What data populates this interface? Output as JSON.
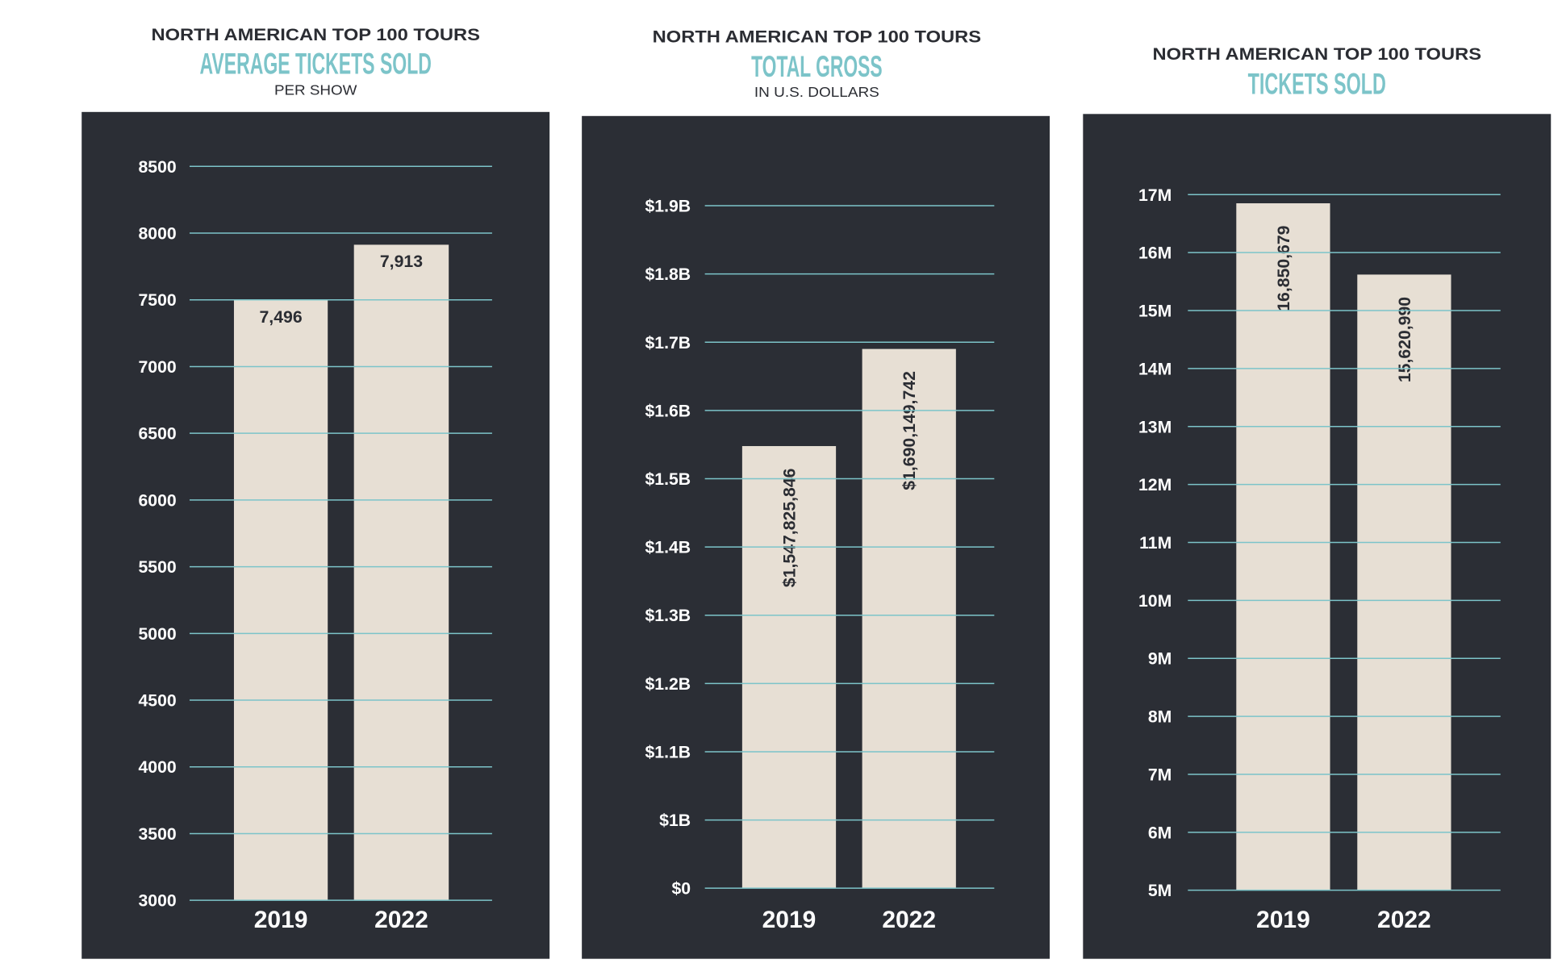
{
  "colors": {
    "panel": "#2b2e35",
    "bar": "#e7dfd4",
    "grid": "#7cc4c9",
    "title_accent": "#7cc4c9",
    "text_dark": "#2b2d33"
  },
  "chart_data": [
    {
      "type": "bar",
      "supertitle": "NORTH AMERICAN TOP 100 TOURS",
      "title": "AVERAGE TICKETS SOLD",
      "subtitle": "PER SHOW",
      "categories": [
        "2019",
        "2022"
      ],
      "values": [
        7496,
        7913
      ],
      "data_labels": [
        "7,496",
        "7,913"
      ],
      "yticks": [
        3000,
        3500,
        4000,
        4500,
        5000,
        5500,
        6000,
        6500,
        7000,
        7500,
        8000,
        8500
      ],
      "ytick_labels": [
        "3000",
        "3500",
        "4000",
        "4500",
        "5000",
        "5500",
        "6000",
        "6500",
        "7000",
        "7500",
        "8000",
        "8500"
      ],
      "ylim": [
        3000,
        8500
      ],
      "grid": true,
      "label_orientation": "horizontal"
    },
    {
      "type": "bar",
      "supertitle": "NORTH AMERICAN TOP 100 TOURS",
      "title": "TOTAL GROSS",
      "subtitle": "IN U.S. DOLLARS",
      "categories": [
        "2019",
        "2022"
      ],
      "values": [
        1547825846,
        1690149742
      ],
      "data_labels": [
        "$1,547,825,846",
        "$1,690,149,742"
      ],
      "yticks": [
        0,
        1000000000,
        1100000000,
        1200000000,
        1300000000,
        1400000000,
        1500000000,
        1600000000,
        1700000000,
        1800000000,
        1900000000
      ],
      "ytick_labels": [
        "$0",
        "$1B",
        "$1.1B",
        "$1.2B",
        "$1.3B",
        "$1.4B",
        "$1.5B",
        "$1.6B",
        "$1.7B",
        "$1.8B",
        "$1.9B"
      ],
      "ylim": [
        0,
        1900000000
      ],
      "axis_break": true,
      "grid": true,
      "label_orientation": "vertical"
    },
    {
      "type": "bar",
      "supertitle": "NORTH AMERICAN TOP 100 TOURS",
      "title": "TICKETS SOLD",
      "categories": [
        "2019",
        "2022"
      ],
      "values": [
        16850679,
        15620990
      ],
      "data_labels": [
        "16,850,679",
        "15,620,990"
      ],
      "yticks": [
        5000000,
        6000000,
        7000000,
        8000000,
        9000000,
        10000000,
        11000000,
        12000000,
        13000000,
        14000000,
        15000000,
        16000000,
        17000000
      ],
      "ytick_labels": [
        "5M",
        "6M",
        "7M",
        "8M",
        "9M",
        "10M",
        "11M",
        "12M",
        "13M",
        "14M",
        "15M",
        "16M",
        "17M"
      ],
      "ylim": [
        5000000,
        17000000
      ],
      "grid": true,
      "label_orientation": "vertical"
    }
  ]
}
